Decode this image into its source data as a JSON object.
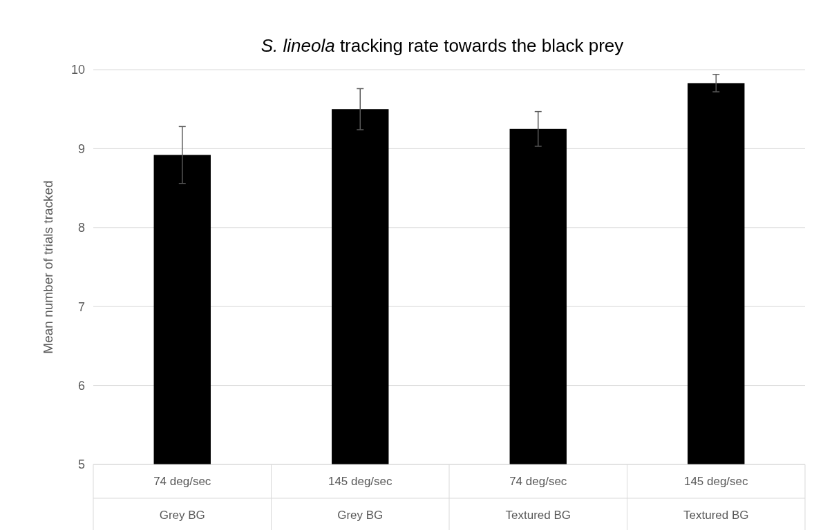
{
  "chart_data": {
    "type": "bar",
    "title": "S. lineola tracking rate towards the black prey",
    "ylabel": "Mean number of trials tracked",
    "categories": [
      "74 deg/sec\nGrey BG",
      "145 deg/sec\nGrey BG",
      "74 deg/sec\nTextured BG",
      "145 deg/sec\nTextured BG"
    ],
    "values": [
      8.92,
      9.5,
      9.25,
      9.83
    ],
    "color": "#000000",
    "errors": [
      [
        8.56,
        9.28
      ],
      [
        9.24,
        9.76
      ],
      [
        9.03,
        9.47
      ],
      [
        9.72,
        9.94
      ]
    ],
    "ylim": [
      5,
      10
    ],
    "yticks": [
      5,
      6,
      7,
      8,
      9,
      10
    ],
    "grid": "y"
  }
}
